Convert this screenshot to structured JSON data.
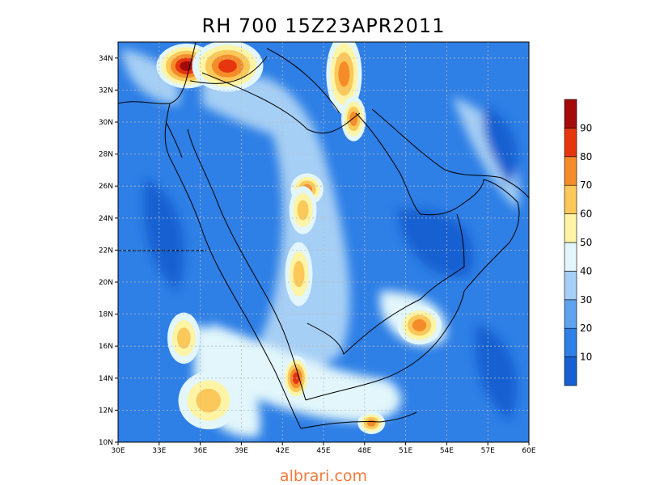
{
  "title": "RH 700  15Z23APR2011",
  "watermark": "albrari.com",
  "colors": {
    "rh_0_10": "#1660d2",
    "rh_10_20": "#2e7fe6",
    "rh_20_30": "#5fa2ee",
    "rh_30_40": "#a6cff5",
    "rh_40_50": "#e2f6fb",
    "rh_50_60": "#fdf4a6",
    "rh_60_70": "#fbc85a",
    "rh_70_80": "#f58c2a",
    "rh_80_90": "#e6360f",
    "rh_90_100": "#a50a0a",
    "coastline": "#000000",
    "grid": "#bbbbbb"
  },
  "map": {
    "lon_range": [
      30,
      60
    ],
    "lat_range": [
      10,
      35
    ],
    "x_ticks": [
      {
        "lon": 30,
        "label": "30E"
      },
      {
        "lon": 33,
        "label": "33E"
      },
      {
        "lon": 36,
        "label": "36E"
      },
      {
        "lon": 39,
        "label": "39E"
      },
      {
        "lon": 42,
        "label": "42E"
      },
      {
        "lon": 45,
        "label": "45E"
      },
      {
        "lon": 48,
        "label": "48E"
      },
      {
        "lon": 51,
        "label": "51E"
      },
      {
        "lon": 54,
        "label": "54E"
      },
      {
        "lon": 57,
        "label": "57E"
      },
      {
        "lon": 60,
        "label": "60E"
      }
    ],
    "y_ticks": [
      {
        "lat": 10,
        "label": "10N"
      },
      {
        "lat": 12,
        "label": "12N"
      },
      {
        "lat": 14,
        "label": "14N"
      },
      {
        "lat": 16,
        "label": "16N"
      },
      {
        "lat": 18,
        "label": "18N"
      },
      {
        "lat": 20,
        "label": "20N"
      },
      {
        "lat": 22,
        "label": "22N"
      },
      {
        "lat": 24,
        "label": "24N"
      },
      {
        "lat": 26,
        "label": "26N"
      },
      {
        "lat": 28,
        "label": "28N"
      },
      {
        "lat": 30,
        "label": "30N"
      },
      {
        "lat": 32,
        "label": "32N"
      },
      {
        "lat": 34,
        "label": "34N"
      }
    ]
  },
  "colorbar": {
    "levels": [
      {
        "label": "10",
        "color": "#1660d2"
      },
      {
        "label": "20",
        "color": "#2e7fe6"
      },
      {
        "label": "30",
        "color": "#5fa2ee"
      },
      {
        "label": "40",
        "color": "#a6cff5"
      },
      {
        "label": "50",
        "color": "#e2f6fb"
      },
      {
        "label": "60",
        "color": "#fdf4a6"
      },
      {
        "label": "70",
        "color": "#fbc85a"
      },
      {
        "label": "80",
        "color": "#f58c2a"
      },
      {
        "label": "90",
        "color": "#e6360f"
      },
      {
        "label": "",
        "color": "#a50a0a"
      }
    ]
  },
  "features": [
    {
      "lon": 35.0,
      "lat": 33.5,
      "rx": 2.2,
      "ry": 1.4,
      "level": 9
    },
    {
      "lon": 38.0,
      "lat": 33.5,
      "rx": 2.6,
      "ry": 1.6,
      "level": 8
    },
    {
      "lon": 46.5,
      "lat": 33.0,
      "rx": 1.3,
      "ry": 2.5,
      "level": 7
    },
    {
      "lon": 47.2,
      "lat": 30.2,
      "rx": 0.9,
      "ry": 1.4,
      "level": 7
    },
    {
      "lon": 43.8,
      "lat": 25.8,
      "rx": 1.2,
      "ry": 1.0,
      "level": 7
    },
    {
      "lon": 43.5,
      "lat": 24.5,
      "rx": 1.0,
      "ry": 1.5,
      "level": 6
    },
    {
      "lon": 43.2,
      "lat": 20.5,
      "rx": 1.0,
      "ry": 2.0,
      "level": 6
    },
    {
      "lon": 43.0,
      "lat": 14.0,
      "rx": 1.0,
      "ry": 1.4,
      "level": 8
    },
    {
      "lon": 52.0,
      "lat": 17.3,
      "rx": 1.6,
      "ry": 1.2,
      "level": 7
    },
    {
      "lon": 36.6,
      "lat": 12.6,
      "rx": 2.2,
      "ry": 1.8,
      "level": 6
    },
    {
      "lon": 34.8,
      "lat": 16.5,
      "rx": 1.2,
      "ry": 1.6,
      "level": 6
    },
    {
      "lon": 48.5,
      "lat": 11.2,
      "rx": 1.0,
      "ry": 0.7,
      "level": 7
    }
  ]
}
